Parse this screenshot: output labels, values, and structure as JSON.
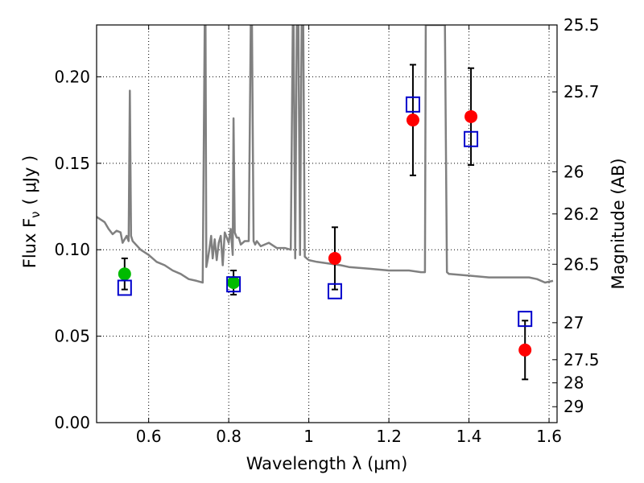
{
  "chart_data": {
    "type": "scatter",
    "xlabel": "Wavelength  λ (μm)",
    "ylabel": "Flux  F",
    "ylabel_sub": "ν",
    "ylabel_unit": "( μJy )",
    "ylabel_right": "Magnitude (AB)",
    "xlim": [
      0.47,
      1.62
    ],
    "ylim": [
      0.0,
      0.23
    ],
    "grid": true,
    "xticks": [
      0.6,
      0.8,
      1.0,
      1.2,
      1.4,
      1.6
    ],
    "xtick_labels": [
      "0.6",
      "0.8",
      "1",
      "1.2",
      "1.4",
      "1.6"
    ],
    "yticks": [
      0.0,
      0.05,
      0.1,
      0.15,
      0.2
    ],
    "ytick_labels": [
      "0.00",
      "0.05",
      "0.10",
      "0.15",
      "0.20"
    ],
    "right_ticks": [
      {
        "label": "25.5",
        "flux": 0.23
      },
      {
        "label": "25.7",
        "flux": 0.1913
      },
      {
        "label": "26",
        "flux": 0.1451
      },
      {
        "label": "26.2",
        "flux": 0.1207
      },
      {
        "label": "26.5",
        "flux": 0.0916
      },
      {
        "label": "27",
        "flux": 0.0578
      },
      {
        "label": "27.5",
        "flux": 0.0364
      },
      {
        "label": "28",
        "flux": 0.023
      },
      {
        "label": "29",
        "flux": 0.0092
      }
    ],
    "colors": {
      "model": "#808080",
      "red": "#ff0000",
      "green": "#00bb00",
      "box": "#0000cc",
      "error": "#000000"
    },
    "series": [
      {
        "name": "model spectrum",
        "kind": "line",
        "color": "#808080",
        "x": [
          0.47,
          0.49,
          0.5,
          0.51,
          0.52,
          0.53,
          0.535,
          0.545,
          0.55,
          0.553,
          0.556,
          0.56,
          0.58,
          0.6,
          0.62,
          0.64,
          0.66,
          0.68,
          0.7,
          0.72,
          0.735,
          0.74,
          0.742,
          0.744,
          0.748,
          0.752,
          0.756,
          0.76,
          0.765,
          0.77,
          0.775,
          0.78,
          0.785,
          0.79,
          0.8,
          0.805,
          0.81,
          0.812,
          0.815,
          0.82,
          0.825,
          0.83,
          0.84,
          0.85,
          0.855,
          0.858,
          0.862,
          0.866,
          0.87,
          0.88,
          0.9,
          0.92,
          0.94,
          0.955,
          0.96,
          0.962,
          0.966,
          0.97,
          0.974,
          0.978,
          0.982,
          0.986,
          0.99,
          0.995,
          1.0,
          1.02,
          1.05,
          1.08,
          1.1,
          1.15,
          1.2,
          1.25,
          1.28,
          1.29,
          1.292,
          1.295,
          1.3,
          1.31,
          1.315,
          1.318,
          1.322,
          1.33,
          1.34,
          1.345,
          1.35,
          1.4,
          1.45,
          1.5,
          1.55,
          1.57,
          1.59,
          1.61
        ],
        "y": [
          0.119,
          0.116,
          0.112,
          0.109,
          0.111,
          0.11,
          0.104,
          0.108,
          0.105,
          0.192,
          0.108,
          0.105,
          0.1,
          0.097,
          0.093,
          0.091,
          0.088,
          0.086,
          0.083,
          0.082,
          0.081,
          0.23,
          0.23,
          0.09,
          0.095,
          0.101,
          0.108,
          0.095,
          0.106,
          0.094,
          0.104,
          0.108,
          0.091,
          0.11,
          0.104,
          0.112,
          0.097,
          0.176,
          0.11,
          0.107,
          0.107,
          0.103,
          0.105,
          0.105,
          0.23,
          0.23,
          0.105,
          0.103,
          0.105,
          0.102,
          0.104,
          0.101,
          0.101,
          0.1,
          0.23,
          0.23,
          0.095,
          0.23,
          0.23,
          0.097,
          0.23,
          0.23,
          0.096,
          0.095,
          0.094,
          0.093,
          0.092,
          0.091,
          0.09,
          0.089,
          0.088,
          0.088,
          0.087,
          0.087,
          0.23,
          0.23,
          0.23,
          0.23,
          0.23,
          0.23,
          0.23,
          0.23,
          0.23,
          0.087,
          0.086,
          0.085,
          0.084,
          0.084,
          0.084,
          0.083,
          0.081,
          0.082
        ]
      },
      {
        "name": "red points",
        "kind": "marker",
        "marker": "circle",
        "color": "#ff0000",
        "points": [
          {
            "x": 1.065,
            "y": 0.095,
            "err": 0.018
          },
          {
            "x": 1.26,
            "y": 0.175,
            "err": 0.032
          },
          {
            "x": 1.405,
            "y": 0.177,
            "err": 0.028
          },
          {
            "x": 1.54,
            "y": 0.042,
            "err": 0.017
          }
        ]
      },
      {
        "name": "green points",
        "kind": "marker",
        "marker": "circle",
        "color": "#00bb00",
        "points": [
          {
            "x": 0.54,
            "y": 0.086,
            "err": 0.009
          },
          {
            "x": 0.812,
            "y": 0.081,
            "err": 0.007
          }
        ]
      },
      {
        "name": "blue boxes",
        "kind": "marker",
        "marker": "open-square",
        "color": "#0000cc",
        "points": [
          {
            "x": 0.54,
            "y": 0.078
          },
          {
            "x": 0.812,
            "y": 0.08
          },
          {
            "x": 1.065,
            "y": 0.076
          },
          {
            "x": 1.26,
            "y": 0.184
          },
          {
            "x": 1.405,
            "y": 0.164
          },
          {
            "x": 1.54,
            "y": 0.06
          }
        ]
      }
    ]
  }
}
